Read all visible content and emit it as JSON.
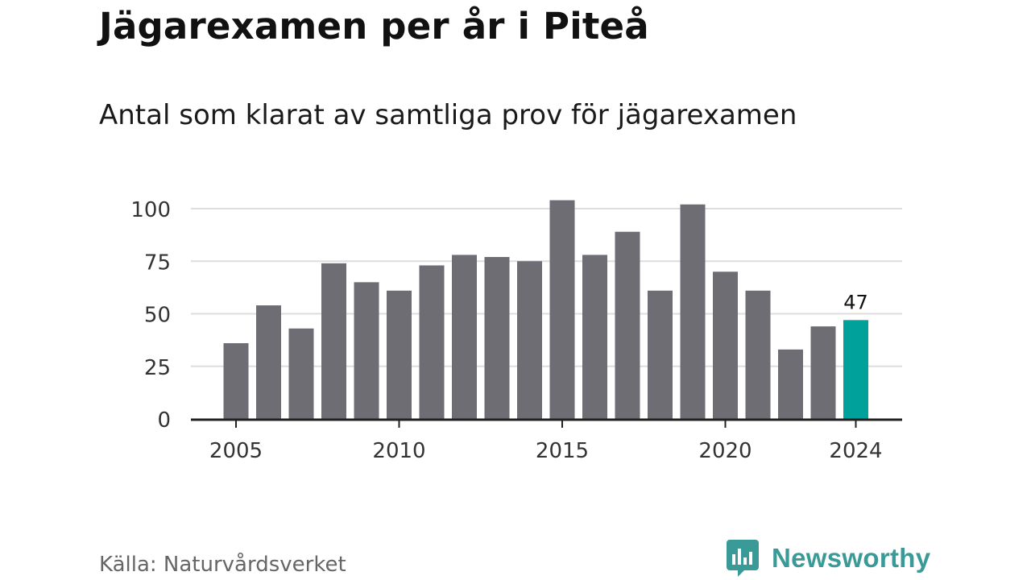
{
  "header": {
    "title": "Jägarexamen per år i Piteå",
    "subtitle": "Antal som klarat av samtliga prov för jägarexamen"
  },
  "footer": {
    "source": "Källa: Naturvårdsverket",
    "brand": "Newsworthy",
    "brand_icon": "bar-chart-speech-bubble-icon"
  },
  "colors": {
    "bar": "#6e6d74",
    "highlight": "#00a19a",
    "grid": "#dddddd",
    "axis": "#222222",
    "brand": "#3a9a97"
  },
  "chart_data": {
    "type": "bar",
    "title": "Jägarexamen per år i Piteå",
    "subtitle": "Antal som klarat av samtliga prov för jägarexamen",
    "x": [
      2005,
      2006,
      2007,
      2008,
      2009,
      2010,
      2011,
      2012,
      2013,
      2014,
      2015,
      2016,
      2017,
      2018,
      2019,
      2020,
      2021,
      2022,
      2023,
      2024
    ],
    "values": [
      36,
      54,
      43,
      74,
      65,
      61,
      73,
      78,
      77,
      75,
      104,
      78,
      89,
      61,
      102,
      70,
      61,
      33,
      44,
      47
    ],
    "xticks": [
      "2005",
      "2010",
      "2015",
      "2020",
      "2024"
    ],
    "yticks": [
      0,
      25,
      50,
      75,
      100
    ],
    "ylim": [
      0,
      110
    ],
    "highlight": {
      "x": 2024,
      "label": "47"
    },
    "grid": true,
    "xlabel": "",
    "ylabel": ""
  }
}
